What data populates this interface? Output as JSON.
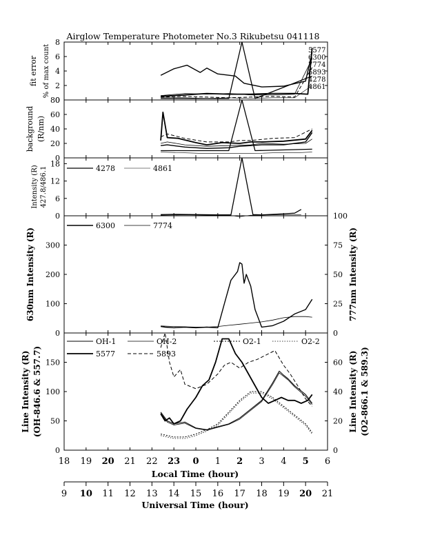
{
  "title": "Airglow Temperature Photometer No.3   Rikubetsu   041118",
  "chart_data": [
    {
      "id": "fit_error",
      "type": "line",
      "ylabel": [
        "fit error",
        "% of max count"
      ],
      "ylim": [
        0,
        8
      ],
      "yticks": [
        "0",
        "2",
        "4",
        "6",
        "8"
      ],
      "legend": [
        "5577",
        "6300",
        "7774",
        "5893",
        "4278",
        "4861"
      ],
      "series": [
        {
          "name": "5577",
          "x": [
            22.4,
            23.5,
            0.5,
            1.5,
            2.5,
            3.5,
            4.5,
            5.1,
            5.3
          ],
          "y": [
            0.5,
            0.7,
            0.9,
            0.8,
            0.8,
            0.9,
            0.9,
            0.8,
            7.2
          ]
        },
        {
          "name": "6300",
          "x": [
            22.4,
            23.0,
            23.6,
            0.2,
            0.5,
            1.0,
            1.8,
            2.2,
            3.0,
            4.0,
            5.0,
            5.3
          ],
          "y": [
            3.4,
            4.3,
            4.8,
            3.8,
            4.4,
            3.6,
            3.3,
            2.3,
            1.8,
            1.9,
            2.6,
            6.6
          ]
        },
        {
          "name": "7774",
          "x": [
            22.4,
            23.5,
            0.5,
            1.5,
            2.5,
            3.5,
            4.5,
            5.3
          ],
          "y": [
            0.6,
            0.9,
            0.8,
            0.9,
            0.7,
            0.7,
            0.8,
            5.7
          ]
        },
        {
          "name": "5893",
          "x": [
            22.4,
            23.5,
            0.5,
            1.5,
            2.5,
            3.5,
            4.5,
            5.3
          ],
          "y": [
            0.4,
            0.5,
            0.4,
            0.3,
            0.4,
            0.5,
            0.4,
            4.5
          ]
        },
        {
          "name": "4278",
          "x": [
            22.4,
            1.5,
            2.1,
            2.7,
            5.3
          ],
          "y": [
            0.2,
            0.2,
            8.0,
            0.2,
            3.3
          ]
        },
        {
          "name": "4861",
          "x": [
            22.4,
            23.5,
            0.5,
            1.5,
            2.5,
            3.5,
            4.5,
            5.3
          ],
          "y": [
            0.3,
            0.3,
            0.2,
            0.3,
            0.2,
            0.3,
            0.3,
            2.0
          ]
        }
      ]
    },
    {
      "id": "background",
      "type": "line",
      "ylabel": [
        "background",
        "(R/nm)"
      ],
      "ylim": [
        0,
        80
      ],
      "yticks": [
        "0",
        "20",
        "40",
        "60",
        "80"
      ],
      "series": [
        {
          "name": "5577",
          "x": [
            22.4,
            22.5,
            22.7,
            23.2,
            0.0,
            0.5,
            1.2,
            2.0,
            2.5,
            3.0,
            4.0,
            5.0,
            5.3
          ],
          "y": [
            24,
            63,
            28,
            27,
            21,
            18,
            21,
            20,
            22,
            22,
            23,
            26,
            38
          ]
        },
        {
          "name": "6300",
          "x": [
            22.4,
            22.7,
            23.5,
            0.5,
            1.5,
            2.0,
            2.5,
            3.0,
            4.0,
            5.0,
            5.3
          ],
          "y": [
            17,
            18,
            15,
            13,
            14,
            16,
            17,
            18,
            18,
            22,
            35
          ]
        },
        {
          "name": "7774",
          "x": [
            22.4,
            22.7,
            23.5,
            0.5,
            1.5,
            2.5,
            3.0,
            4.0,
            5.0,
            5.3
          ],
          "y": [
            20,
            22,
            18,
            16,
            17,
            18,
            20,
            19,
            20,
            26
          ]
        },
        {
          "name": "5893",
          "x": [
            22.4,
            22.7,
            23.5,
            0.5,
            1.5,
            2.0,
            2.5,
            3.5,
            4.5,
            5.3
          ],
          "y": [
            29,
            33,
            27,
            22,
            22,
            24,
            24,
            27,
            28,
            40
          ]
        },
        {
          "name": "4278",
          "x": [
            22.4,
            1.5,
            2.1,
            2.7,
            5.3
          ],
          "y": [
            10,
            10,
            80,
            10,
            12
          ]
        },
        {
          "name": "4861",
          "x": [
            22.4,
            23.5,
            0.5,
            1.5,
            2.5,
            3.5,
            4.5,
            5.3
          ],
          "y": [
            8,
            7,
            6,
            6,
            6,
            7,
            7,
            8
          ]
        }
      ]
    },
    {
      "id": "blue_lines",
      "type": "line",
      "ylabel": [
        "Intensity (R)",
        "427.8/486.1"
      ],
      "ylim": [
        0,
        20
      ],
      "yticks": [
        "0",
        "6",
        "12",
        "18"
      ],
      "legend": [
        "4278",
        "4861"
      ],
      "series": [
        {
          "name": "4278",
          "x": [
            22.4,
            23.0,
            0.0,
            1.0,
            1.6,
            2.1,
            2.6,
            3.0,
            4.0,
            4.5,
            4.8
          ],
          "y": [
            0.4,
            0.5,
            0.4,
            0.3,
            0.3,
            20,
            0.4,
            0.3,
            0.7,
            0.9,
            2.2
          ]
        },
        {
          "name": "4861",
          "x": [
            22.4,
            23.5,
            0.5,
            1.5,
            2.0,
            2.5,
            3.5,
            4.5,
            4.8
          ],
          "y": [
            0.2,
            0.3,
            0.2,
            0.2,
            -0.3,
            0.2,
            0.3,
            0.3,
            0.4
          ]
        }
      ]
    },
    {
      "id": "red_lines",
      "type": "line",
      "ylabel": "630nm Intensity (R)",
      "y2label": "777nm Intensity (R)",
      "ylim": [
        0,
        400
      ],
      "y2lim": [
        0,
        100
      ],
      "yticks": [
        "0",
        "100",
        "200",
        "300"
      ],
      "y2ticks": [
        "0",
        "25",
        "50",
        "75",
        "100"
      ],
      "legend": [
        "6300",
        "7774"
      ],
      "series": [
        {
          "name": "6300",
          "axis": "left",
          "x": [
            22.4,
            22.6,
            23.0,
            23.5,
            0.0,
            0.5,
            1.0,
            1.3,
            1.6,
            1.9,
            2.0,
            2.1,
            2.2,
            2.3,
            2.5,
            2.7,
            3.0,
            3.5,
            4.0,
            4.5,
            5.0,
            5.3
          ],
          "y": [
            22,
            20,
            18,
            20,
            18,
            20,
            18,
            100,
            180,
            210,
            240,
            235,
            170,
            200,
            160,
            80,
            20,
            25,
            40,
            65,
            80,
            115
          ]
        },
        {
          "name": "7774",
          "axis": "right",
          "x": [
            22.4,
            23.0,
            0.0,
            0.5,
            1.0,
            1.5,
            2.0,
            2.5,
            3.0,
            3.5,
            4.0,
            4.5,
            5.0,
            5.3
          ],
          "y": [
            6,
            5.5,
            5,
            5,
            5.5,
            6.5,
            7.5,
            8.5,
            9.5,
            11,
            13,
            14,
            14,
            13.5
          ]
        }
      ]
    },
    {
      "id": "line_intensity",
      "type": "line",
      "ylabel": [
        "Line Intensity (R)",
        "(OH-846.6 & 557.7)"
      ],
      "y2label": [
        "Line Intensity (R)",
        "(O2-866.1 & 589.3)"
      ],
      "ylim": [
        0,
        200
      ],
      "y2lim": [
        0,
        80
      ],
      "yticks": [
        "0",
        "50",
        "100",
        "150"
      ],
      "y2ticks": [
        "0",
        "20",
        "40",
        "60"
      ],
      "legend": [
        "OH-1",
        "OH-2",
        "O2-1",
        "O2-2",
        "5577",
        "5893"
      ],
      "series": [
        {
          "name": "OH-1",
          "axis": "left",
          "x": [
            22.4,
            22.7,
            23.0,
            23.5,
            0.0,
            0.5,
            1.0,
            1.5,
            2.0,
            2.5,
            3.0,
            3.5,
            3.8,
            4.0,
            4.2,
            4.5,
            5.0,
            5.3
          ],
          "y": [
            65,
            50,
            45,
            48,
            38,
            35,
            40,
            45,
            55,
            70,
            85,
            115,
            135,
            128,
            122,
            110,
            95,
            80
          ]
        },
        {
          "name": "OH-2",
          "axis": "left",
          "x": [
            22.4,
            22.7,
            23.0,
            23.5,
            0.0,
            0.5,
            1.0,
            1.5,
            2.0,
            2.5,
            3.0,
            3.5,
            3.8,
            4.0,
            4.2,
            4.5,
            5.0,
            5.3
          ],
          "y": [
            63,
            48,
            43,
            46,
            37,
            34,
            39,
            44,
            53,
            68,
            83,
            112,
            132,
            126,
            120,
            108,
            92,
            78
          ]
        },
        {
          "name": "O2-1",
          "axis": "right",
          "x": [
            22.4,
            23.0,
            23.5,
            0.0,
            0.5,
            1.0,
            1.5,
            2.0,
            2.5,
            3.0,
            3.5,
            4.0,
            4.5,
            5.0,
            5.3
          ],
          "y": [
            11,
            9,
            9,
            11,
            14,
            18,
            26,
            34,
            40,
            40,
            36,
            30,
            24,
            18,
            12
          ]
        },
        {
          "name": "O2-2",
          "axis": "right",
          "x": [
            22.4,
            23.0,
            23.5,
            0.0,
            0.5,
            1.0,
            1.5,
            2.0,
            2.5,
            3.0,
            3.5,
            4.0,
            4.5,
            5.0,
            5.3
          ],
          "y": [
            10,
            8,
            8,
            10,
            13,
            17,
            25,
            33,
            39,
            39,
            35,
            29,
            23,
            17,
            11
          ]
        },
        {
          "name": "5577",
          "axis": "left",
          "x": [
            22.4,
            22.6,
            22.8,
            23.0,
            23.3,
            23.6,
            0.0,
            0.3,
            0.6,
            0.9,
            1.2,
            1.5,
            1.8,
            2.1,
            2.4,
            2.7,
            3.0,
            3.3,
            3.6,
            3.9,
            4.2,
            4.5,
            4.8,
            5.1,
            5.3
          ],
          "y": [
            62,
            50,
            55,
            45,
            50,
            70,
            90,
            110,
            120,
            150,
            190,
            190,
            165,
            150,
            130,
            110,
            90,
            80,
            85,
            90,
            85,
            85,
            80,
            85,
            95
          ]
        },
        {
          "name": "5893",
          "axis": "right",
          "x": [
            22.4,
            22.6,
            22.8,
            23.0,
            23.3,
            23.5,
            0.0,
            0.5,
            1.0,
            1.3,
            1.6,
            2.0,
            2.4,
            2.8,
            3.2,
            3.6,
            4.0,
            4.3,
            4.6,
            5.0,
            5.3
          ],
          "y": [
            70,
            80,
            60,
            50,
            55,
            45,
            42,
            45,
            52,
            58,
            60,
            56,
            60,
            62,
            65,
            68,
            58,
            52,
            45,
            35,
            30
          ]
        }
      ]
    }
  ],
  "axes": {
    "local_time": {
      "label": "Local Time (hour)",
      "ticks": [
        "18",
        "19",
        "20",
        "21",
        "22",
        "23",
        "0",
        "1",
        "2",
        "3",
        "4",
        "5",
        "6"
      ]
    },
    "universal_time": {
      "label": "Universal Time (hour)",
      "ticks": [
        "9",
        "10",
        "11",
        "12",
        "13",
        "14",
        "15",
        "16",
        "17",
        "18",
        "19",
        "20",
        "21"
      ]
    }
  }
}
